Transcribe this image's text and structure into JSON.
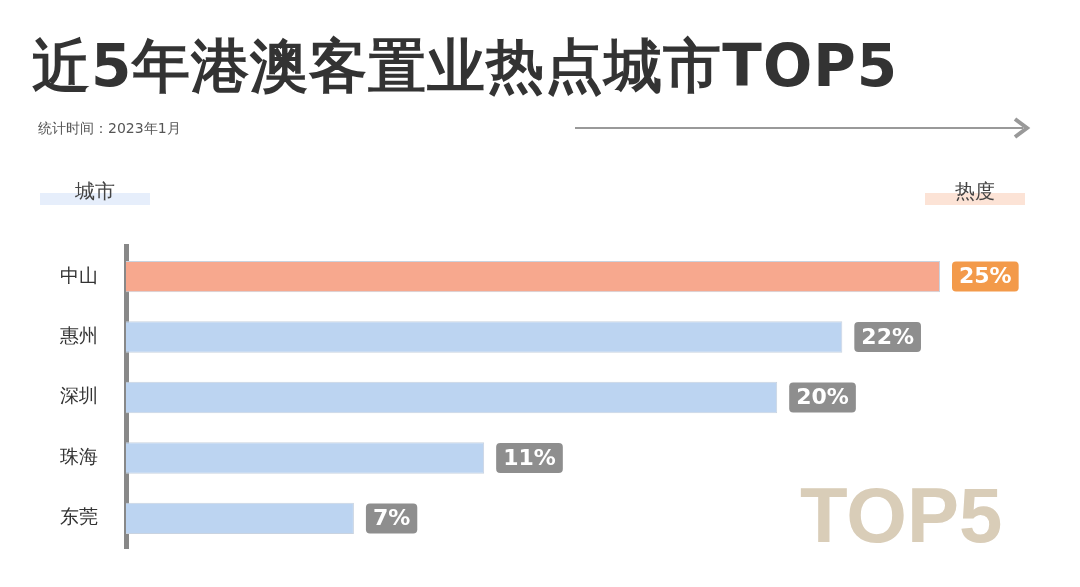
{
  "chart_data": {
    "type": "bar",
    "orientation": "horizontal",
    "title": "近5年港澳客置业热点城市TOP5",
    "subtitle": "统计时间：2023年1月",
    "ylabel": "城市",
    "xlabel": "热度",
    "categories": [
      "中山",
      "惠州",
      "深圳",
      "珠海",
      "东莞"
    ],
    "values": [
      25,
      22,
      20,
      11,
      7
    ],
    "value_labels": [
      "25%",
      "22%",
      "20%",
      "11%",
      "7%"
    ],
    "colors": [
      "#f7a88e",
      "#bcd4f1",
      "#bcd4f1",
      "#bcd4f1",
      "#bcd4f1"
    ],
    "annotations": [
      "TOP5"
    ],
    "grid": false,
    "legend": false
  }
}
